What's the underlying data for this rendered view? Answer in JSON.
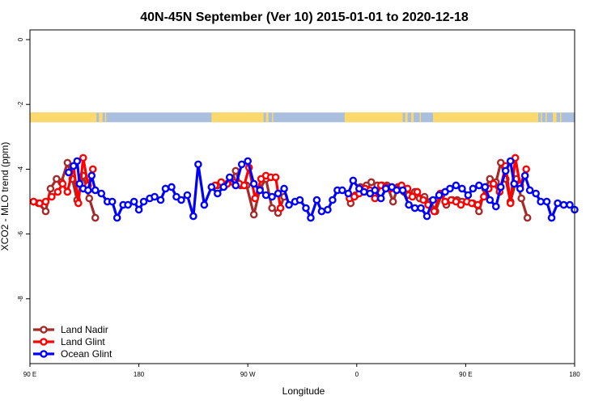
{
  "chart_data": {
    "type": "line",
    "title": "40N-45N September (Ver 10)   2015-01-01 to 2020-12-18",
    "xlabel": "Longitude",
    "ylabel": "XCO2 - MLO trend (ppm)",
    "x_ticks": [
      {
        "value": 90,
        "label": "90 E"
      },
      {
        "value": 180,
        "label": "180"
      },
      {
        "value": 270,
        "label": "90 W"
      },
      {
        "value": 360,
        "label": "0"
      },
      {
        "value": 450,
        "label": "90 E"
      },
      {
        "value": 540,
        "label": "180"
      }
    ],
    "y_ticks": [
      0,
      -2,
      -4,
      -6,
      -8
    ],
    "xlim": [
      90,
      540
    ],
    "ylim": [
      -10,
      0.3
    ],
    "grid": false,
    "legend_position": "bottom-left",
    "land_ocean_band": {
      "y_range": [
        -2.25,
        -2.55
      ],
      "land_color": "#fbd96c",
      "ocean_color": "#a9bfdd",
      "land_segments": [
        [
          90,
          145
        ],
        [
          147,
          150
        ],
        [
          152,
          153
        ],
        [
          240,
          283
        ],
        [
          285,
          287
        ],
        [
          290,
          291
        ],
        [
          350,
          398
        ],
        [
          400,
          402
        ],
        [
          405,
          407
        ],
        [
          412,
          413
        ],
        [
          423,
          510
        ],
        [
          512,
          513
        ],
        [
          516,
          517
        ],
        [
          522,
          525
        ],
        [
          528,
          529
        ]
      ]
    },
    "series": [
      {
        "name": "Land Nadir",
        "color": "#a52a2a",
        "segments": [
          [
            [
              93,
              -5.0
            ],
            [
              97,
              -5.05
            ],
            [
              103,
              -5.3
            ],
            [
              107,
              -4.6
            ],
            [
              112,
              -4.3
            ],
            [
              116,
              -4.4
            ],
            [
              121,
              -3.8
            ],
            [
              125,
              -4.3
            ],
            [
              129,
              -4.95
            ],
            [
              134,
              -4.2
            ],
            [
              139,
              -4.9
            ],
            [
              144,
              -5.5
            ]
          ],
          [
            [
              245,
              -4.5
            ],
            [
              251,
              -4.5
            ],
            [
              257,
              -4.3
            ],
            [
              260,
              -4.05
            ],
            [
              264,
              -4.5
            ],
            [
              269,
              -4.5
            ],
            [
              275,
              -5.4
            ],
            [
              280,
              -4.6
            ],
            [
              285,
              -4.3
            ],
            [
              290,
              -5.2
            ],
            [
              295,
              -5.35
            ],
            [
              300,
              -4.85
            ]
          ],
          [
            [
              355,
              -5.05
            ],
            [
              359,
              -4.8
            ],
            [
              363,
              -4.55
            ],
            [
              368,
              -4.5
            ],
            [
              372,
              -4.4
            ],
            [
              377,
              -4.5
            ],
            [
              381,
              -4.5
            ],
            [
              385,
              -4.5
            ],
            [
              390,
              -5.0
            ],
            [
              394,
              -4.55
            ],
            [
              399,
              -4.7
            ],
            [
              403,
              -4.8
            ],
            [
              408,
              -4.7
            ],
            [
              412,
              -4.9
            ],
            [
              416,
              -4.85
            ],
            [
              421,
              -5.0
            ],
            [
              425,
              -5.3
            ],
            [
              430,
              -4.8
            ],
            [
              434,
              -5.1
            ],
            [
              439,
              -4.95
            ],
            [
              443,
              -4.95
            ],
            [
              447,
              -5.0
            ],
            [
              451,
              -5.0
            ],
            [
              456,
              -5.05
            ],
            [
              461,
              -5.3
            ],
            [
              466,
              -4.6
            ],
            [
              470,
              -4.3
            ],
            [
              475,
              -4.4
            ],
            [
              479,
              -3.8
            ],
            [
              483,
              -4.3
            ],
            [
              487,
              -5.0
            ],
            [
              492,
              -4.3
            ],
            [
              496,
              -4.9
            ],
            [
              501,
              -5.5
            ]
          ]
        ]
      },
      {
        "name": "Land Glint",
        "color": "#ff0000",
        "segments": [
          [
            [
              93,
              -5.0
            ],
            [
              98,
              -5.05
            ],
            [
              103,
              -5.0
            ],
            [
              108,
              -4.85
            ],
            [
              113,
              -4.7
            ],
            [
              117,
              -4.45
            ],
            [
              121,
              -4.7
            ],
            [
              126,
              -3.9
            ],
            [
              130,
              -5.05
            ],
            [
              134,
              -3.65
            ],
            [
              138,
              -4.5
            ],
            [
              142,
              -4.0
            ]
          ],
          [
            [
              243,
              -4.5
            ],
            [
              248,
              -4.4
            ],
            [
              253,
              -4.45
            ],
            [
              258,
              -4.4
            ],
            [
              263,
              -4.45
            ],
            [
              267,
              -4.5
            ],
            [
              271,
              -3.95
            ],
            [
              276,
              -4.9
            ],
            [
              281,
              -4.3
            ],
            [
              285,
              -4.2
            ],
            [
              289,
              -4.25
            ],
            [
              293,
              -4.25
            ],
            [
              297,
              -5.2
            ]
          ],
          [
            [
              354,
              -4.9
            ],
            [
              358,
              -4.85
            ],
            [
              362,
              -4.75
            ],
            [
              367,
              -4.6
            ],
            [
              371,
              -4.65
            ],
            [
              375,
              -4.9
            ],
            [
              380,
              -4.5
            ],
            [
              384,
              -4.55
            ],
            [
              388,
              -4.6
            ],
            [
              393,
              -4.6
            ],
            [
              397,
              -4.5
            ],
            [
              402,
              -4.6
            ],
            [
              406,
              -4.85
            ],
            [
              410,
              -4.7
            ],
            [
              415,
              -4.95
            ],
            [
              419,
              -5.1
            ],
            [
              424,
              -5.3
            ],
            [
              429,
              -4.75
            ],
            [
              433,
              -5.0
            ],
            [
              438,
              -4.95
            ],
            [
              442,
              -5.0
            ],
            [
              446,
              -5.1
            ],
            [
              451,
              -5.0
            ],
            [
              455,
              -5.05
            ],
            [
              460,
              -5.1
            ],
            [
              465,
              -4.85
            ],
            [
              469,
              -4.6
            ],
            [
              473,
              -4.45
            ],
            [
              478,
              -4.7
            ],
            [
              483,
              -3.9
            ],
            [
              487,
              -5.05
            ],
            [
              491,
              -3.65
            ],
            [
              495,
              -4.5
            ],
            [
              500,
              -4.0
            ]
          ]
        ]
      },
      {
        "name": "Ocean Glint",
        "color": "#0000ff",
        "segments": [
          [
            [
              122,
              -4.1
            ],
            [
              126,
              -3.9
            ],
            [
              129,
              -3.75
            ],
            [
              131,
              -4.45
            ],
            [
              134,
              -4.6
            ],
            [
              138,
              -4.65
            ],
            [
              141,
              -4.2
            ],
            [
              144,
              -4.65
            ],
            [
              149,
              -4.75
            ],
            [
              154,
              -5.0
            ],
            [
              158,
              -5.0
            ],
            [
              162,
              -5.5
            ],
            [
              167,
              -5.1
            ],
            [
              171,
              -5.1
            ],
            [
              176,
              -5.0
            ],
            [
              180,
              -5.25
            ],
            [
              184,
              -5.0
            ],
            [
              189,
              -4.9
            ],
            [
              193,
              -4.85
            ],
            [
              198,
              -4.95
            ],
            [
              202,
              -4.6
            ],
            [
              207,
              -4.55
            ],
            [
              211,
              -4.85
            ],
            [
              215,
              -4.95
            ],
            [
              220,
              -4.8
            ],
            [
              225,
              -5.45
            ],
            [
              229,
              -3.85
            ],
            [
              234,
              -5.1
            ],
            [
              240,
              -4.55
            ],
            [
              245,
              -4.75
            ],
            [
              250,
              -4.55
            ],
            [
              255,
              -4.25
            ],
            [
              260,
              -4.5
            ],
            [
              265,
              -3.85
            ],
            [
              270,
              -3.75
            ],
            [
              275,
              -4.45
            ],
            [
              280,
              -4.65
            ],
            [
              285,
              -4.8
            ],
            [
              290,
              -4.85
            ],
            [
              295,
              -4.75
            ],
            [
              300,
              -4.6
            ],
            [
              304,
              -5.1
            ],
            [
              309,
              -5.0
            ],
            [
              313,
              -4.95
            ],
            [
              318,
              -5.2
            ],
            [
              322,
              -5.5
            ],
            [
              327,
              -4.95
            ],
            [
              331,
              -5.3
            ],
            [
              336,
              -5.25
            ],
            [
              340,
              -4.95
            ],
            [
              344,
              -4.65
            ],
            [
              348,
              -4.65
            ],
            [
              353,
              -4.75
            ],
            [
              357,
              -4.35
            ],
            [
              362,
              -4.6
            ],
            [
              366,
              -4.7
            ],
            [
              371,
              -4.75
            ],
            [
              375,
              -4.65
            ],
            [
              380,
              -4.9
            ],
            [
              384,
              -4.6
            ],
            [
              389,
              -4.55
            ],
            [
              393,
              -4.65
            ],
            [
              398,
              -4.65
            ],
            [
              403,
              -5.1
            ],
            [
              408,
              -5.2
            ],
            [
              413,
              -5.2
            ],
            [
              418,
              -5.45
            ],
            [
              423,
              -4.95
            ],
            [
              428,
              -4.8
            ],
            [
              433,
              -4.7
            ],
            [
              437,
              -4.6
            ],
            [
              442,
              -4.5
            ],
            [
              447,
              -4.6
            ],
            [
              452,
              -4.8
            ],
            [
              456,
              -4.6
            ],
            [
              461,
              -4.5
            ],
            [
              466,
              -4.55
            ],
            [
              470,
              -4.95
            ],
            [
              475,
              -5.15
            ],
            [
              479,
              -4.55
            ],
            [
              483,
              -4.05
            ],
            [
              487,
              -3.75
            ],
            [
              490,
              -4.45
            ],
            [
              495,
              -4.6
            ],
            [
              499,
              -4.2
            ],
            [
              503,
              -4.65
            ],
            [
              508,
              -4.75
            ],
            [
              512,
              -5.0
            ],
            [
              517,
              -5.0
            ],
            [
              521,
              -5.5
            ],
            [
              526,
              -5.05
            ],
            [
              531,
              -5.1
            ],
            [
              536,
              -5.1
            ],
            [
              540,
              -5.25
            ]
          ]
        ]
      }
    ]
  }
}
